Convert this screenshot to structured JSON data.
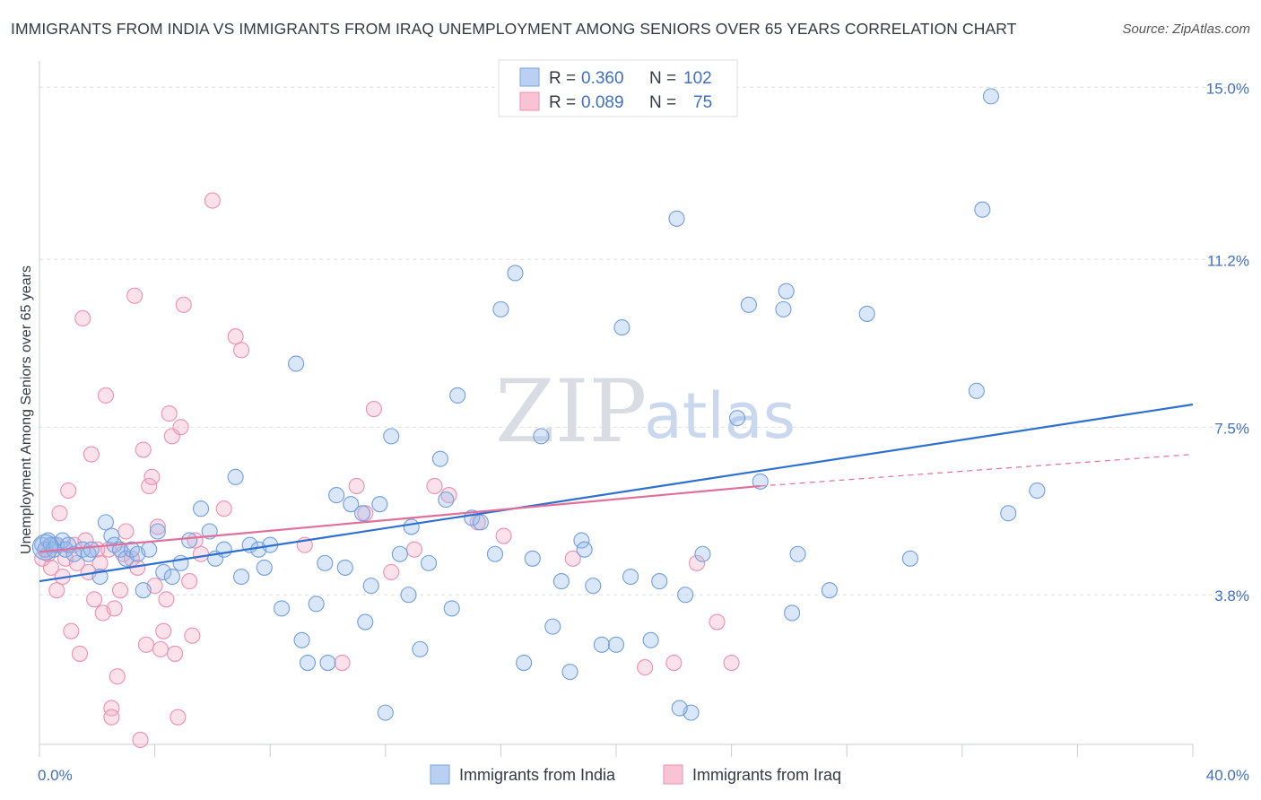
{
  "header": {
    "title": "IMMIGRANTS FROM INDIA VS IMMIGRANTS FROM IRAQ UNEMPLOYMENT AMONG SENIORS OVER 65 YEARS CORRELATION CHART",
    "source": "Source: ZipAtlas.com"
  },
  "watermark": {
    "zip": "ZIP",
    "atlas": "atlas"
  },
  "legend": {
    "india": {
      "r_label": "R = ",
      "r_value": "0.360",
      "n_label": "N = ",
      "n_value": "102"
    },
    "iraq": {
      "r_label": "R = ",
      "r_value": "0.089",
      "n_label": "N = ",
      "n_value": "75"
    }
  },
  "chart_data": {
    "type": "scatter",
    "title": "IMMIGRANTS FROM INDIA VS IMMIGRANTS FROM IRAQ UNEMPLOYMENT AMONG SENIORS OVER 65 YEARS CORRELATION CHART",
    "xlabel": "",
    "ylabel": "Unemployment Among Seniors over 65 years",
    "xlim": [
      0,
      40
    ],
    "ylim": [
      0.5,
      15.5
    ],
    "x_tick_labels": [
      {
        "value": 0,
        "label": "0.0%"
      },
      {
        "value": 40,
        "label": "40.0%"
      }
    ],
    "y_tick_labels": [
      {
        "value": 3.8,
        "label": "3.8%"
      },
      {
        "value": 7.5,
        "label": "7.5%"
      },
      {
        "value": 11.2,
        "label": "11.2%"
      },
      {
        "value": 15.0,
        "label": "15.0%"
      }
    ],
    "grid": "horizontal dashed",
    "legend_placement": "top-center",
    "colors": {
      "india": "#6f9ee0",
      "iraq": "#ee8fb0",
      "india_line": "#2f6fce",
      "iraq_line": "#e0709a"
    },
    "series": [
      {
        "name": "Immigrants from India",
        "r": 0.36,
        "n": 102,
        "trend": {
          "x": [
            0,
            40
          ],
          "y": [
            4.1,
            8.0
          ]
        },
        "points": [
          [
            0.1,
            4.9
          ],
          [
            0.2,
            4.8
          ],
          [
            0.3,
            5.0
          ],
          [
            0.4,
            4.9
          ],
          [
            0.5,
            4.8
          ],
          [
            0.6,
            4.9
          ],
          [
            0.8,
            5.0
          ],
          [
            0.9,
            4.8
          ],
          [
            1.0,
            4.9
          ],
          [
            1.2,
            4.7
          ],
          [
            1.5,
            4.8
          ],
          [
            1.7,
            4.7
          ],
          [
            1.8,
            4.8
          ],
          [
            2.1,
            4.2
          ],
          [
            2.3,
            5.4
          ],
          [
            2.5,
            5.1
          ],
          [
            2.6,
            4.9
          ],
          [
            2.8,
            4.8
          ],
          [
            3.0,
            4.6
          ],
          [
            3.2,
            4.8
          ],
          [
            3.4,
            4.7
          ],
          [
            3.6,
            3.9
          ],
          [
            3.8,
            4.8
          ],
          [
            4.1,
            5.2
          ],
          [
            4.3,
            4.3
          ],
          [
            4.6,
            4.2
          ],
          [
            4.9,
            4.5
          ],
          [
            5.2,
            5.0
          ],
          [
            5.6,
            5.7
          ],
          [
            5.9,
            5.2
          ],
          [
            6.1,
            4.6
          ],
          [
            6.4,
            4.8
          ],
          [
            6.8,
            6.4
          ],
          [
            7.0,
            4.2
          ],
          [
            7.3,
            4.9
          ],
          [
            7.6,
            4.8
          ],
          [
            7.8,
            4.4
          ],
          [
            8.0,
            4.9
          ],
          [
            8.4,
            3.5
          ],
          [
            8.9,
            8.9
          ],
          [
            9.1,
            2.8
          ],
          [
            9.3,
            2.3
          ],
          [
            9.6,
            3.6
          ],
          [
            9.9,
            4.5
          ],
          [
            10.0,
            2.3
          ],
          [
            10.3,
            6.0
          ],
          [
            10.6,
            4.4
          ],
          [
            10.8,
            5.8
          ],
          [
            11.2,
            5.6
          ],
          [
            11.3,
            3.2
          ],
          [
            11.5,
            4.0
          ],
          [
            11.8,
            5.8
          ],
          [
            12.0,
            1.2
          ],
          [
            12.2,
            7.3
          ],
          [
            12.5,
            4.7
          ],
          [
            12.8,
            3.8
          ],
          [
            12.9,
            5.3
          ],
          [
            13.2,
            2.6
          ],
          [
            13.5,
            4.5
          ],
          [
            13.9,
            6.8
          ],
          [
            14.1,
            5.9
          ],
          [
            14.3,
            3.5
          ],
          [
            14.5,
            8.2
          ],
          [
            15.0,
            5.5
          ],
          [
            15.3,
            5.4
          ],
          [
            15.8,
            4.7
          ],
          [
            16.0,
            10.1
          ],
          [
            16.5,
            10.9
          ],
          [
            16.8,
            2.3
          ],
          [
            17.1,
            4.6
          ],
          [
            17.4,
            7.3
          ],
          [
            17.8,
            3.1
          ],
          [
            18.1,
            4.1
          ],
          [
            18.4,
            2.1
          ],
          [
            18.8,
            5.0
          ],
          [
            18.9,
            4.8
          ],
          [
            19.2,
            4.0
          ],
          [
            19.5,
            2.7
          ],
          [
            20.0,
            2.7
          ],
          [
            20.2,
            9.7
          ],
          [
            20.5,
            4.2
          ],
          [
            21.2,
            2.8
          ],
          [
            21.5,
            4.1
          ],
          [
            22.1,
            12.1
          ],
          [
            22.4,
            3.8
          ],
          [
            22.6,
            1.2
          ],
          [
            22.2,
            1.3
          ],
          [
            23.0,
            4.7
          ],
          [
            24.2,
            7.7
          ],
          [
            24.6,
            10.2
          ],
          [
            25.0,
            6.3
          ],
          [
            25.8,
            10.1
          ],
          [
            25.9,
            10.5
          ],
          [
            26.1,
            3.4
          ],
          [
            26.3,
            4.7
          ],
          [
            27.4,
            3.9
          ],
          [
            28.7,
            10.0
          ],
          [
            30.2,
            4.6
          ],
          [
            32.5,
            8.3
          ],
          [
            32.7,
            12.3
          ],
          [
            33.0,
            14.8
          ],
          [
            33.6,
            5.6
          ],
          [
            34.6,
            6.1
          ]
        ]
      },
      {
        "name": "Immigrants from Iraq",
        "r": 0.089,
        "n": 75,
        "trend": {
          "x": [
            0,
            25
          ],
          "y": [
            4.75,
            6.2
          ]
        },
        "trend_extension": {
          "x": [
            25,
            40
          ],
          "y": [
            6.2,
            6.9
          ]
        },
        "points": [
          [
            0.1,
            4.6
          ],
          [
            0.2,
            4.8
          ],
          [
            0.3,
            4.7
          ],
          [
            0.4,
            4.4
          ],
          [
            0.5,
            4.9
          ],
          [
            0.6,
            3.9
          ],
          [
            0.7,
            5.6
          ],
          [
            0.8,
            4.2
          ],
          [
            0.9,
            4.6
          ],
          [
            1.0,
            6.1
          ],
          [
            1.1,
            3.0
          ],
          [
            1.2,
            4.9
          ],
          [
            1.3,
            4.5
          ],
          [
            1.4,
            2.5
          ],
          [
            1.5,
            9.9
          ],
          [
            1.6,
            5.0
          ],
          [
            1.7,
            4.3
          ],
          [
            1.8,
            6.9
          ],
          [
            1.9,
            3.7
          ],
          [
            2.0,
            4.8
          ],
          [
            2.1,
            4.5
          ],
          [
            2.2,
            3.4
          ],
          [
            2.3,
            8.2
          ],
          [
            2.4,
            4.8
          ],
          [
            2.5,
            1.3
          ],
          [
            2.5,
            1.1
          ],
          [
            2.6,
            3.5
          ],
          [
            2.7,
            2.0
          ],
          [
            2.8,
            3.9
          ],
          [
            2.9,
            4.7
          ],
          [
            3.0,
            5.2
          ],
          [
            3.2,
            4.6
          ],
          [
            3.3,
            10.4
          ],
          [
            3.4,
            4.4
          ],
          [
            3.5,
            0.6
          ],
          [
            3.6,
            7.0
          ],
          [
            3.7,
            2.7
          ],
          [
            3.8,
            6.2
          ],
          [
            3.9,
            6.4
          ],
          [
            4.0,
            4.0
          ],
          [
            4.1,
            5.3
          ],
          [
            4.2,
            2.6
          ],
          [
            4.3,
            3.0
          ],
          [
            4.4,
            3.7
          ],
          [
            4.5,
            7.8
          ],
          [
            4.6,
            7.3
          ],
          [
            4.7,
            2.5
          ],
          [
            4.8,
            1.1
          ],
          [
            4.9,
            7.5
          ],
          [
            5.0,
            10.2
          ],
          [
            5.2,
            4.1
          ],
          [
            5.3,
            2.9
          ],
          [
            5.4,
            5.0
          ],
          [
            5.6,
            4.7
          ],
          [
            6.0,
            12.5
          ],
          [
            6.4,
            5.7
          ],
          [
            6.8,
            9.5
          ],
          [
            7.0,
            9.2
          ],
          [
            10.5,
            2.3
          ],
          [
            11.0,
            6.2
          ],
          [
            11.3,
            5.6
          ],
          [
            11.6,
            7.9
          ],
          [
            12.2,
            4.3
          ],
          [
            13.0,
            4.8
          ],
          [
            13.7,
            6.2
          ],
          [
            14.2,
            6.0
          ],
          [
            15.2,
            5.4
          ],
          [
            16.1,
            5.1
          ],
          [
            21.0,
            2.2
          ],
          [
            22.0,
            2.3
          ],
          [
            22.8,
            4.5
          ],
          [
            23.5,
            3.2
          ],
          [
            24.0,
            2.3
          ],
          [
            18.5,
            4.6
          ],
          [
            9.2,
            4.9
          ]
        ]
      }
    ]
  },
  "bottom_legend": {
    "india": "Immigrants from India",
    "iraq": "Immigrants from Iraq"
  }
}
